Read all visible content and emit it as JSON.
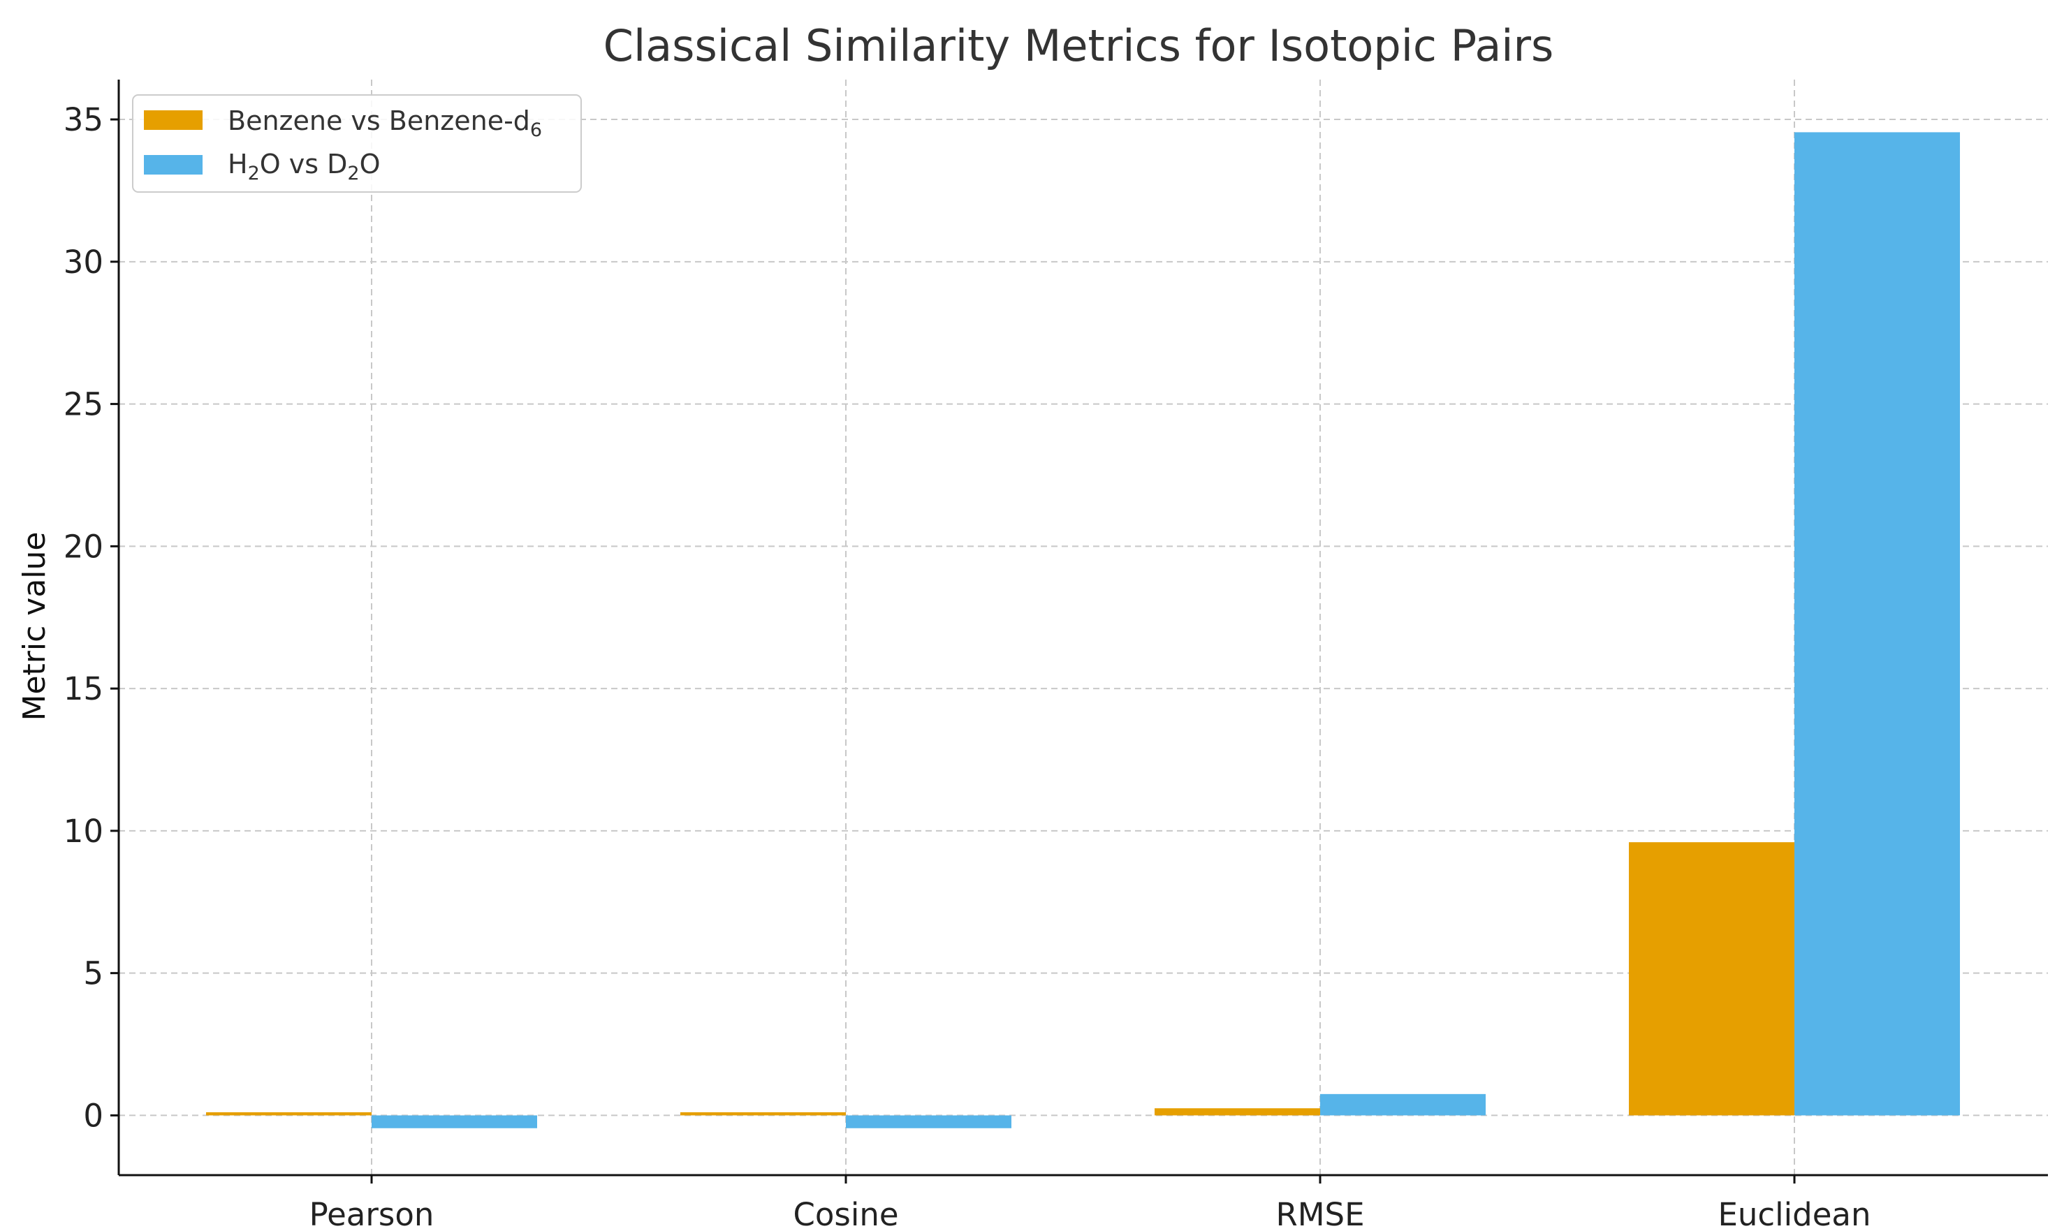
{
  "chart_data": {
    "type": "bar",
    "title": "Classical Similarity Metrics for Isotopic Pairs",
    "xlabel": "",
    "ylabel": "Metric value",
    "categories": [
      "Pearson",
      "Cosine",
      "RMSE",
      "Euclidean"
    ],
    "ylim": [
      -2.1,
      36.4
    ],
    "yticks": [
      0,
      5,
      10,
      15,
      20,
      25,
      30,
      35
    ],
    "grid": true,
    "legend_position": "top-left",
    "series": [
      {
        "name": "Benzene vs Benzene-d6",
        "name_main": "Benzene vs Benzene-d",
        "name_sub": "6",
        "color": "#E69F00",
        "values": [
          0.11,
          0.11,
          0.25,
          9.6
        ]
      },
      {
        "name": "H2O vs D2O",
        "name_parts": [
          "H",
          "2",
          "O vs D",
          "2",
          "O"
        ],
        "color": "#56B4E9",
        "values": [
          -0.45,
          -0.45,
          0.75,
          34.55
        ]
      }
    ]
  }
}
